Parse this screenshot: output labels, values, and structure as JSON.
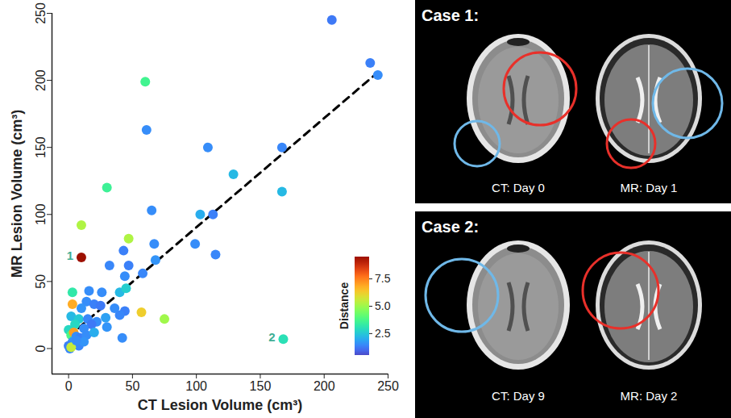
{
  "chart_data": {
    "type": "scatter",
    "x_label": "CT Lesion Volume (cm³)",
    "y_label": "MR Lesion Volume (cm³)",
    "marker": "circle",
    "grid": false,
    "x": [
      206,
      236,
      242,
      60,
      61,
      109,
      167,
      129,
      30,
      167,
      65,
      103,
      113,
      10,
      47,
      67,
      99,
      115,
      43,
      10,
      68,
      32,
      47,
      58,
      44,
      16,
      26,
      40,
      45,
      3,
      14,
      20,
      36,
      44,
      57,
      75,
      3,
      10,
      2,
      8,
      15,
      22,
      29,
      18,
      30,
      5,
      12,
      42,
      168,
      0,
      2,
      4,
      6,
      9,
      14,
      20,
      3,
      0,
      1,
      5,
      8,
      2,
      12,
      6,
      40,
      25
    ],
    "y": [
      245,
      213,
      204,
      199,
      163,
      150,
      150,
      130,
      120,
      117,
      103,
      100,
      100,
      92,
      82,
      78,
      78,
      70,
      73,
      68,
      66,
      62,
      62,
      56,
      54,
      43,
      42,
      42,
      45,
      42,
      35,
      33,
      30,
      28,
      27,
      22,
      33,
      30,
      24,
      22,
      22,
      20,
      23,
      18,
      16,
      18,
      15,
      8,
      7,
      14,
      10,
      12,
      9,
      8,
      10,
      12,
      5,
      2,
      0,
      3,
      2,
      1,
      5,
      6,
      25,
      32
    ],
    "distance": [
      1.2,
      1.3,
      1.5,
      3.6,
      1.5,
      1.5,
      1.4,
      2.2,
      3.5,
      2.2,
      1.5,
      2.0,
      1.3,
      5.2,
      5.2,
      1.5,
      1.5,
      1.4,
      1.3,
      9.5,
      1.6,
      1.4,
      1.3,
      1.4,
      1.5,
      1.5,
      1.5,
      2.2,
      2.6,
      3.2,
      1.5,
      1.3,
      1.5,
      1.3,
      6.2,
      5.0,
      6.8,
      1.6,
      2.2,
      2.5,
      1.4,
      1.5,
      1.8,
      1.2,
      1.6,
      2.8,
      1.5,
      1.5,
      3.0,
      2.8,
      3.8,
      7.0,
      1.5,
      1.3,
      1.5,
      2.0,
      1.6,
      1.3,
      1.4,
      2.2,
      1.4,
      5.5,
      1.6,
      1.5,
      1.4,
      1.2
    ],
    "xlim": [
      -13,
      250
    ],
    "ylim": [
      -19,
      250
    ],
    "xticks": [
      0,
      50,
      100,
      150,
      200,
      250
    ],
    "yticks": [
      0,
      50,
      100,
      150,
      200,
      250
    ],
    "colorbar": {
      "label": "Distance",
      "range": [
        0.5,
        9.5
      ],
      "ticks": [
        2.5,
        {
          "value": 5,
          "label": "5.0"
        },
        7.5
      ]
    },
    "annotations": [
      {
        "text": "1",
        "x": 10,
        "y": 68
      },
      {
        "text": "2",
        "x": 168,
        "y": 7
      }
    ],
    "fit_line": {
      "x": [
        0,
        242
      ],
      "y": [
        9,
        206
      ],
      "line_style": "dashed",
      "color": "#000000"
    }
  },
  "cases": [
    {
      "title": "Case 1:",
      "images": [
        {
          "label": "CT: Day 0"
        },
        {
          "label": "MR: Day 1"
        }
      ]
    },
    {
      "title": "Case 2:",
      "images": [
        {
          "label": "CT: Day 9"
        },
        {
          "label": "MR: Day 2"
        }
      ]
    }
  ]
}
